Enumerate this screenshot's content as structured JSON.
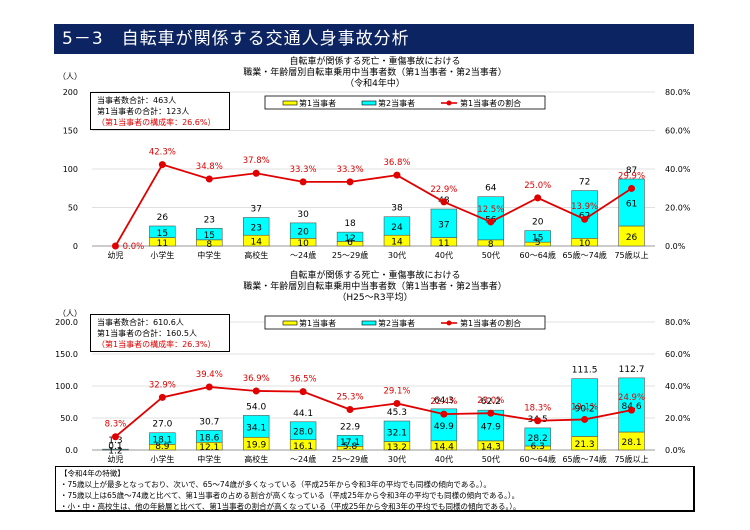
{
  "header": {
    "title": "5－3　自転車が関係する交通人身事故分析"
  },
  "notes": {
    "heading": "【令和4年の特徴】",
    "lines": [
      "・75歳以上が最多となっており、次いで、65～74歳が多くなっている（平成25年から令和3年の平均でも同様の傾向である。）。",
      "・75歳以上は65歳～74歳と比べて、第1当事者の占める割合が高くなっている（平成25年から令和3年の平均でも同様の傾向である。）。",
      "・小・中・高校生は、他の年齢層と比べて、第1当事者の割合が高くなっている（平成25年から令和3年の平均でも同様の傾向である。）。"
    ]
  },
  "chart_data": [
    {
      "type": "bar",
      "stacked": true,
      "title_lines": [
        "自転車が関係する死亡・重傷事故における",
        "職業・年齢層別自転車乗用中当事者数（第1当事者・第2当事者）",
        "（令和4年中）"
      ],
      "ylabel": "（人）",
      "ylim": [
        0,
        200
      ],
      "yticks": [
        "0",
        "50",
        "100",
        "150",
        "200"
      ],
      "y2lim": [
        0,
        80
      ],
      "y2ticks": [
        "0.0%",
        "20.0%",
        "40.0%",
        "60.0%",
        "80.0%"
      ],
      "grid": true,
      "legend": {
        "position": "top",
        "entries": [
          "第1当事者",
          "第2当事者",
          "第1当事者の割合"
        ]
      },
      "summary": {
        "line1": "当事者数合計：463人",
        "line2": "第1当事者の合計：123人",
        "line3": "（第1当事者の構成率：26.6%）"
      },
      "categories": [
        "幼児",
        "小学生",
        "中学生",
        "高校生",
        "～24歳",
        "25～29歳",
        "30代",
        "40代",
        "50代",
        "60～64歳",
        "65歳～74歳",
        "75歳以上"
      ],
      "series": [
        {
          "name": "第1当事者",
          "color": "#ffff00",
          "values": [
            0,
            11,
            8,
            14,
            10,
            6,
            14,
            11,
            8,
            5,
            10,
            26
          ],
          "labels": [
            "",
            "11",
            "8",
            "14",
            "10",
            "6",
            "14",
            "11",
            "8",
            "5",
            "10",
            "26"
          ]
        },
        {
          "name": "第2当事者",
          "color": "#00ffff",
          "values": [
            0,
            15,
            15,
            23,
            20,
            12,
            24,
            37,
            56,
            15,
            62,
            61
          ],
          "labels": [
            "",
            "15",
            "15",
            "23",
            "20",
            "12",
            "24",
            "37",
            "56",
            "15",
            "62",
            "61"
          ]
        },
        {
          "name": "第1当事者の割合",
          "color": "#e00000",
          "axis": "right",
          "values": [
            0.0,
            42.3,
            34.8,
            37.8,
            33.3,
            33.3,
            36.8,
            22.9,
            12.5,
            25.0,
            13.9,
            29.9
          ],
          "labels": [
            "0.0%",
            "42.3%",
            "34.8%",
            "37.8%",
            "33.3%",
            "33.3%",
            "36.8%",
            "22.9%",
            "12.5%",
            "25.0%",
            "13.9%",
            "29.9%"
          ]
        }
      ],
      "totals": [
        "",
        "26",
        "23",
        "37",
        "30",
        "18",
        "38",
        "48",
        "64",
        "20",
        "72",
        "87"
      ]
    },
    {
      "type": "bar",
      "stacked": true,
      "title_lines": [
        "自転車が関係する死亡・重傷事故における",
        "職業・年齢層別自転車乗用中当事者数（第1当事者・第2当事者）",
        "（H25～R3平均）"
      ],
      "ylabel": "（人）",
      "ylim": [
        0,
        200
      ],
      "yticks": [
        "0.0",
        "50.0",
        "100.0",
        "150.0",
        "200.0"
      ],
      "y2lim": [
        0,
        80
      ],
      "y2ticks": [
        "0.0%",
        "20.0%",
        "40.0%",
        "60.0%",
        "80.0%"
      ],
      "grid": true,
      "legend": {
        "position": "top",
        "entries": [
          "第1当事者",
          "第2当事者",
          "第1当事者の割合"
        ]
      },
      "summary": {
        "line1": "当事者数合計：610.6人",
        "line2": "第1当事者の合計：160.5人",
        "line3": "（第1当事者の構成率：26.3%）"
      },
      "categories": [
        "幼児",
        "小学生",
        "中学生",
        "高校生",
        "～24歳",
        "25～29歳",
        "30代",
        "40代",
        "50代",
        "60～64歳",
        "65歳～74歳",
        "75歳以上"
      ],
      "series": [
        {
          "name": "第1当事者",
          "color": "#ffff00",
          "values": [
            0.1,
            8.9,
            12.1,
            19.9,
            16.1,
            5.8,
            13.2,
            14.4,
            14.3,
            6.3,
            21.3,
            28.1
          ],
          "labels": [
            "0.1",
            "8.9",
            "12.1",
            "19.9",
            "16.1",
            "5.8",
            "13.2",
            "14.4",
            "14.3",
            "6.3",
            "21.3",
            "28.1"
          ]
        },
        {
          "name": "第2当事者",
          "color": "#00ffff",
          "values": [
            1.2,
            18.1,
            18.6,
            34.1,
            28.0,
            17.1,
            32.1,
            49.9,
            47.9,
            28.2,
            90.2,
            84.6
          ],
          "labels": [
            "1.2",
            "18.1",
            "18.6",
            "34.1",
            "28.0",
            "17.1",
            "32.1",
            "49.9",
            "47.9",
            "28.2",
            "90.2",
            "84.6"
          ]
        },
        {
          "name": "第1当事者の割合",
          "color": "#e00000",
          "axis": "right",
          "values": [
            8.3,
            32.9,
            39.4,
            36.9,
            36.5,
            25.3,
            29.1,
            22.4,
            23.0,
            18.3,
            19.1,
            24.9
          ],
          "labels": [
            "8.3%",
            "32.9%",
            "39.4%",
            "36.9%",
            "36.5%",
            "25.3%",
            "29.1%",
            "22.4%",
            "23.0%",
            "18.3%",
            "19.1%",
            "24.9%"
          ]
        }
      ],
      "totals": [
        "1.3",
        "27.0",
        "30.7",
        "54.0",
        "44.1",
        "22.9",
        "45.3",
        "64.3",
        "62.2",
        "34.5",
        "111.5",
        "112.7"
      ]
    }
  ]
}
